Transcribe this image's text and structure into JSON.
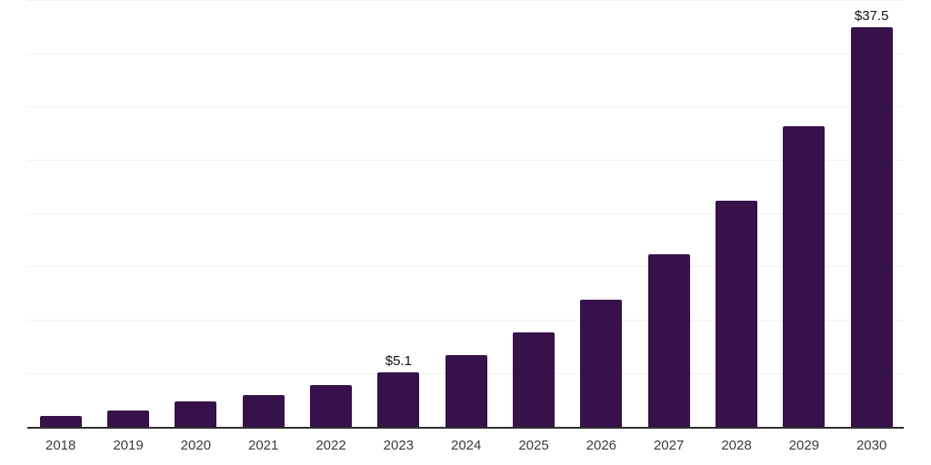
{
  "chart_data": {
    "type": "bar",
    "title": "",
    "xlabel": "",
    "ylabel": "",
    "categories": [
      "2018",
      "2019",
      "2020",
      "2021",
      "2022",
      "2023",
      "2024",
      "2025",
      "2026",
      "2027",
      "2028",
      "2029",
      "2030"
    ],
    "values": [
      1.0,
      1.5,
      2.4,
      3.0,
      3.9,
      5.1,
      6.7,
      8.9,
      11.9,
      16.2,
      21.2,
      28.2,
      37.5
    ],
    "data_labels": [
      "",
      "",
      "",
      "",
      "",
      "$5.1",
      "",
      "",
      "",
      "",
      "",
      "",
      "$37.5"
    ],
    "ylim": [
      0,
      40
    ],
    "gridline_step": 5,
    "grid": true,
    "legend": "none",
    "y_tick_labels_visible": false,
    "colors": {
      "bar": "#36114A",
      "grid": "#f1f1f2",
      "axis": "#2e2e2e",
      "tick_label": "#3a3a3a",
      "data_label": "#111111",
      "background": "#ffffff"
    }
  }
}
